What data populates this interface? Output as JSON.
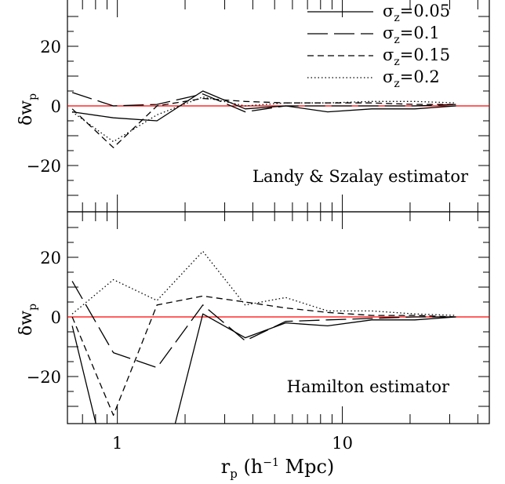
{
  "chart_data": [
    {
      "type": "line",
      "panel": "top",
      "annotation": "Landy & Szalay estimator",
      "ylabel": "δw_p",
      "ylabel_parts": {
        "main": "δw",
        "sub": "p"
      },
      "xlabel": "r_p (h⁻¹ Mpc)",
      "xscale": "log",
      "xlim": [
        0.6,
        45
      ],
      "ylim": [
        -35,
        35
      ],
      "ytick_labels": [
        "20",
        "0",
        "−20"
      ],
      "xtick_labels": [],
      "reference_line": {
        "y": 0,
        "color": "#ff0000"
      },
      "x": [
        0.63,
        0.96,
        1.5,
        2.4,
        3.7,
        5.6,
        8.6,
        13.5,
        21,
        32
      ],
      "series": [
        {
          "name": "σz=0.05",
          "dash": "solid",
          "values": [
            -2,
            -4,
            -5,
            5,
            -1,
            0,
            -2,
            -1,
            -1,
            0
          ]
        },
        {
          "name": "σz=0.1",
          "dash": "longdash",
          "values": [
            4.5,
            0,
            0.5,
            4,
            -2,
            0,
            0,
            0,
            0,
            0.5
          ]
        },
        {
          "name": "σz=0.15",
          "dash": "shortdash",
          "values": [
            -1,
            -14,
            0,
            2.5,
            1.5,
            1,
            1,
            1,
            0.5,
            0.5
          ]
        },
        {
          "name": "σz=0.2",
          "dash": "dotted",
          "values": [
            -2,
            -12,
            -3,
            3,
            0,
            1,
            1,
            1.5,
            1.5,
            1
          ]
        }
      ],
      "legend": {
        "placement": "top-right",
        "entries": [
          {
            "symbol": "σ",
            "sub": "z",
            "value": "=0.05",
            "dash": "solid"
          },
          {
            "symbol": "σ",
            "sub": "z",
            "value": "=0.1",
            "dash": "longdash"
          },
          {
            "symbol": "σ",
            "sub": "z",
            "value": "=0.15",
            "dash": "shortdash"
          },
          {
            "symbol": "σ",
            "sub": "z",
            "value": "=0.2",
            "dash": "dotted"
          }
        ]
      },
      "line_color": "#000000",
      "grid": false
    },
    {
      "type": "line",
      "panel": "bottom",
      "annotation": "Hamilton estimator",
      "ylabel": "δw_p",
      "ylabel_parts": {
        "main": "δw",
        "sub": "p"
      },
      "xlabel": "r_p (h⁻¹ Mpc)",
      "xlabel_parts": {
        "pre": "r",
        "sub": "p",
        "post": " (h",
        "sup": "−1",
        "tail": " Mpc)"
      },
      "xscale": "log",
      "xlim": [
        0.6,
        45
      ],
      "ylim": [
        -35,
        35
      ],
      "ytick_labels": [
        "20",
        "0",
        "−20"
      ],
      "xtick_labels": [
        {
          "value": 1,
          "label": "1"
        },
        {
          "value": 10,
          "label": "10"
        }
      ],
      "reference_line": {
        "y": 0,
        "color": "#ff0000"
      },
      "x": [
        0.63,
        0.96,
        1.5,
        2.4,
        3.7,
        5.6,
        8.6,
        13.5,
        21,
        32
      ],
      "series": [
        {
          "name": "σz=0.05",
          "dash": "solid",
          "values": [
            -3,
            -60,
            -60,
            1,
            -7,
            -2,
            -3,
            -1,
            -1,
            0
          ]
        },
        {
          "name": "σz=0.1",
          "dash": "longdash",
          "values": [
            12,
            -12,
            -17,
            4,
            -8,
            -1.5,
            -1,
            -0.5,
            0,
            0
          ]
        },
        {
          "name": "σz=0.15",
          "dash": "shortdash",
          "values": [
            0,
            -33,
            4,
            7,
            5,
            3,
            1.5,
            0.5,
            0.5,
            0
          ]
        },
        {
          "name": "σz=0.2",
          "dash": "dotted",
          "values": [
            1,
            12.5,
            5.5,
            22,
            4,
            6.5,
            2,
            2,
            1,
            0.5
          ]
        }
      ],
      "line_color": "#000000",
      "grid": false
    }
  ]
}
